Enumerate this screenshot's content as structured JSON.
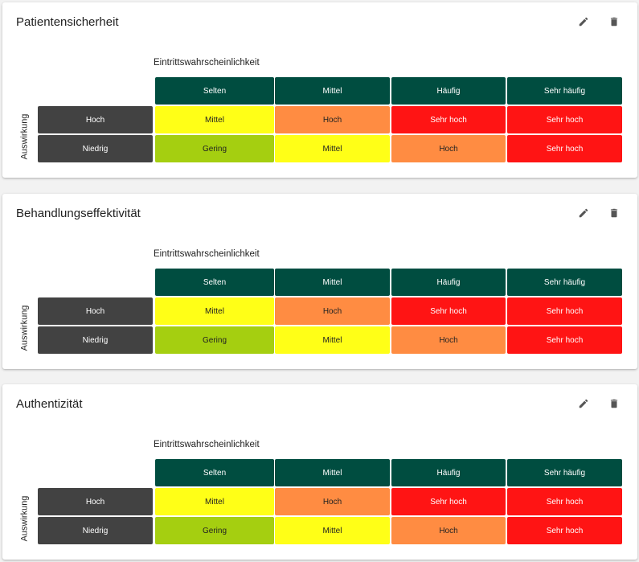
{
  "colors": {
    "Gering": "#a5cf10",
    "Mittel": "#ffff17",
    "Hoch": "#ff8c42",
    "Sehr hoch": "#ff1414"
  },
  "text_colors": {
    "Gering": "#222222",
    "Mittel": "#222222",
    "Hoch": "#222222",
    "Sehr hoch": "#ffffff"
  },
  "matrices": [
    {
      "title": "Patientensicherheit",
      "x_axis": "Eintrittswahrscheinlichkeit",
      "y_axis": "Auswirkung",
      "columns": [
        "Selten",
        "Mittel",
        "Häufig",
        "Sehr häufig"
      ],
      "rows": [
        {
          "label": "Hoch",
          "cells": [
            "Mittel",
            "Hoch",
            "Sehr hoch",
            "Sehr hoch"
          ]
        },
        {
          "label": "Niedrig",
          "cells": [
            "Gering",
            "Mittel",
            "Hoch",
            "Sehr hoch"
          ]
        }
      ],
      "actions": {
        "edit": "edit-icon",
        "delete": "delete-icon"
      }
    },
    {
      "title": "Behandlungseffektivität",
      "x_axis": "Eintrittswahrscheinlichkeit",
      "y_axis": "Auswirkung",
      "columns": [
        "Selten",
        "Mittel",
        "Häufig",
        "Sehr häufig"
      ],
      "rows": [
        {
          "label": "Hoch",
          "cells": [
            "Mittel",
            "Hoch",
            "Sehr hoch",
            "Sehr hoch"
          ]
        },
        {
          "label": "Niedrig",
          "cells": [
            "Gering",
            "Mittel",
            "Hoch",
            "Sehr hoch"
          ]
        }
      ],
      "actions": {
        "edit": "edit-icon",
        "delete": "delete-icon"
      }
    },
    {
      "title": "Authentizität",
      "x_axis": "Eintrittswahrscheinlichkeit",
      "y_axis": "Auswirkung",
      "columns": [
        "Selten",
        "Mittel",
        "Häufig",
        "Sehr häufig"
      ],
      "rows": [
        {
          "label": "Hoch",
          "cells": [
            "Mittel",
            "Hoch",
            "Sehr hoch",
            "Sehr hoch"
          ]
        },
        {
          "label": "Niedrig",
          "cells": [
            "Gering",
            "Mittel",
            "Hoch",
            "Sehr hoch"
          ]
        }
      ],
      "actions": {
        "edit": "edit-icon",
        "delete": "delete-icon"
      }
    }
  ]
}
